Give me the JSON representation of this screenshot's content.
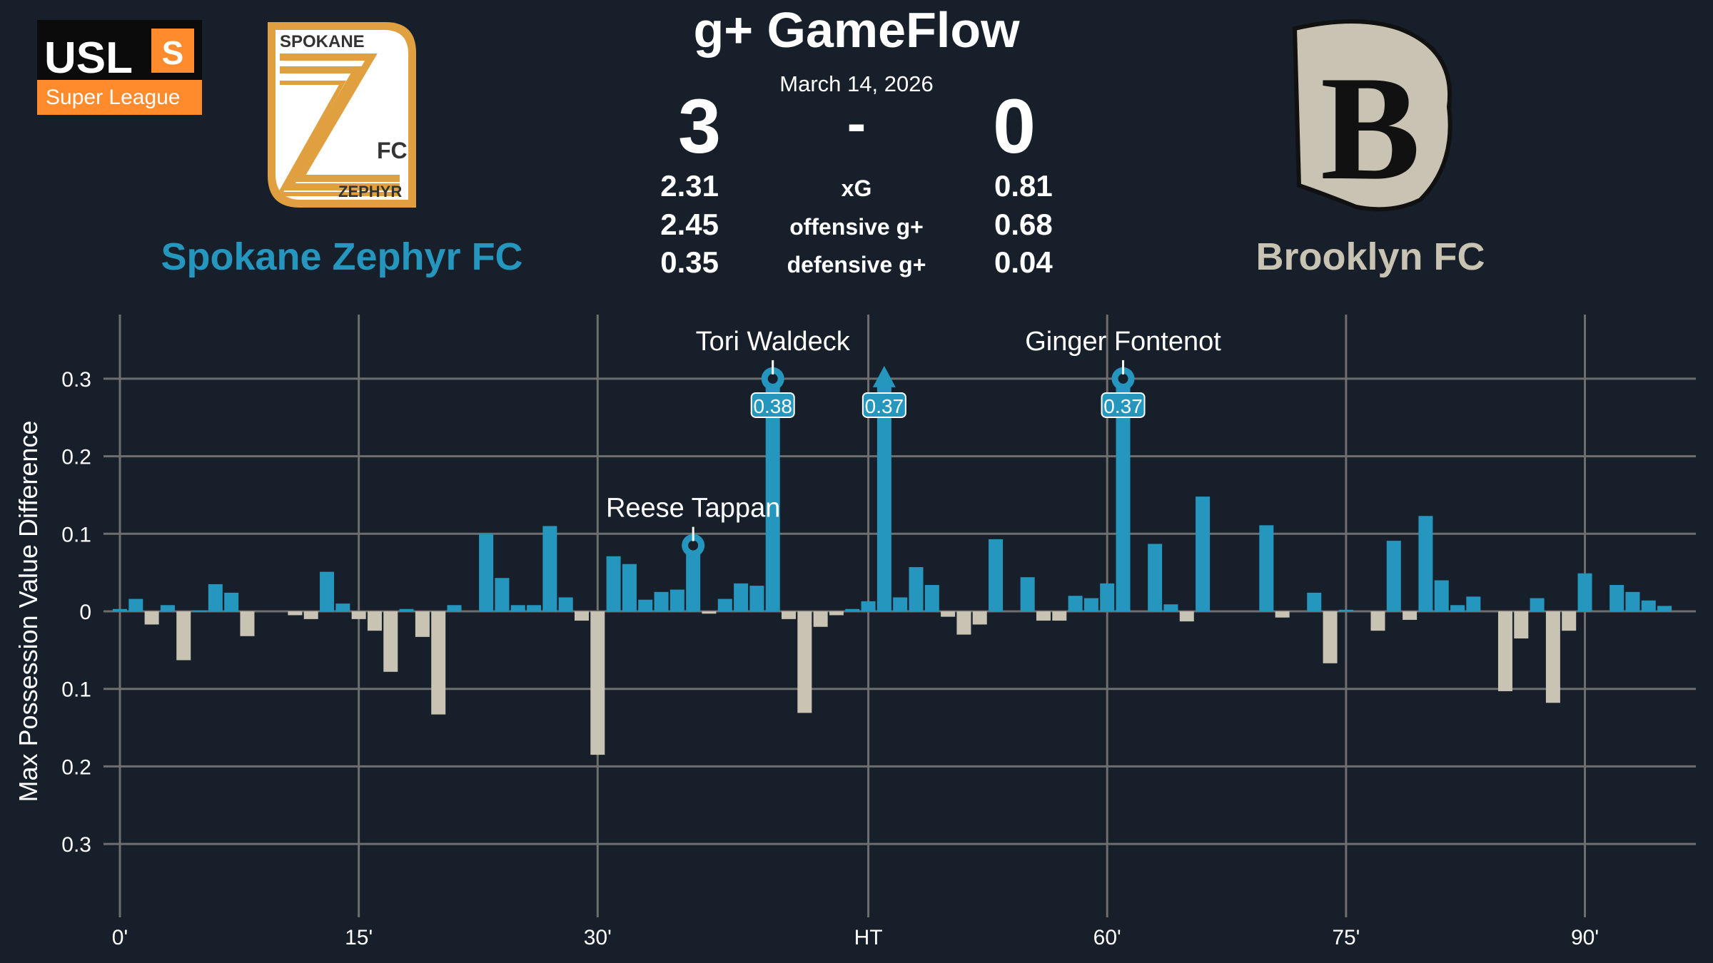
{
  "header": {
    "title": "g+ GameFlow",
    "date": "March 14, 2026",
    "score_separator": "-",
    "home": {
      "name": "Spokane Zephyr FC",
      "score": "3",
      "xg": "2.31",
      "offensive_gplus": "2.45",
      "defensive_gplus": "0.35",
      "color": "#2596be",
      "logo_text": [
        "SPOKANE",
        "FC",
        "ZEPHYR"
      ]
    },
    "away": {
      "name": "Brooklyn FC",
      "score": "0",
      "xg": "0.81",
      "offensive_gplus": "0.68",
      "defensive_gplus": "0.04",
      "color": "#c9c3b4",
      "logo_text": "B"
    },
    "stat_labels": [
      "xG",
      "offensive g+",
      "defensive g+"
    ],
    "league_logo": {
      "text": "USL",
      "badge": "S",
      "subtitle": "Super League",
      "color": "#ff8b2c"
    }
  },
  "chart_data": {
    "type": "bar",
    "ylabel": "Max Possession Value Difference",
    "xlabel": "",
    "ylim": [
      -0.39,
      0.38
    ],
    "yticks": [
      {
        "value": 0.3,
        "label": "0.3"
      },
      {
        "value": 0.2,
        "label": "0.2"
      },
      {
        "value": 0.1,
        "label": "0.1"
      },
      {
        "value": 0,
        "label": "0"
      },
      {
        "value": -0.1,
        "label": "0.1"
      },
      {
        "value": -0.2,
        "label": "0.2"
      },
      {
        "value": -0.3,
        "label": "0.3"
      }
    ],
    "xticks": [
      {
        "index": 0,
        "label": "0'"
      },
      {
        "index": 15,
        "label": "15'"
      },
      {
        "index": 30,
        "label": "30'"
      },
      {
        "index": 47,
        "label": "HT"
      },
      {
        "index": 62,
        "label": "60'"
      },
      {
        "index": 77,
        "label": "75'"
      },
      {
        "index": 92,
        "label": "90'"
      }
    ],
    "display_cap": 0.3,
    "series_note": "positive = Spokane Zephyr FC, negative = Brooklyn FC",
    "values": [
      0.003,
      0.016,
      -0.017,
      0.008,
      -0.063,
      0.001,
      0.035,
      0.024,
      -0.032,
      0,
      0,
      -0.005,
      -0.01,
      0.051,
      0.01,
      -0.01,
      -0.025,
      -0.078,
      0.003,
      -0.033,
      -0.133,
      0.008,
      0,
      0.1,
      0.043,
      0.008,
      0.008,
      0.11,
      0.018,
      -0.012,
      -0.185,
      0.071,
      0.061,
      0.015,
      0.025,
      0.028,
      0.085,
      -0.003,
      0.016,
      0.036,
      0.033,
      0.38,
      -0.01,
      -0.131,
      -0.02,
      -0.005,
      0.003,
      0.013,
      0.37,
      0.018,
      0.057,
      0.034,
      -0.007,
      -0.03,
      -0.017,
      0.093,
      0,
      0.044,
      -0.012,
      -0.012,
      0.02,
      0.017,
      0.036,
      0.37,
      0,
      0.087,
      0.009,
      -0.013,
      0.148,
      0,
      0,
      0,
      0.111,
      -0.008,
      0,
      0.024,
      -0.067,
      0.002,
      0,
      -0.025,
      0.091,
      -0.011,
      0.123,
      0.04,
      0.008,
      0.019,
      0,
      -0.103,
      -0.035,
      0.017,
      -0.118,
      -0.025,
      0.049,
      0,
      0.034,
      0.025,
      0.014,
      0.007
    ],
    "annotations": [
      {
        "index": 36,
        "player": "Reese Tappan",
        "goal": true
      },
      {
        "index": 41,
        "player": "Tori Waldeck",
        "goal": true,
        "label": "0.38"
      },
      {
        "index": 48,
        "goal": false,
        "label": "0.37"
      },
      {
        "index": 63,
        "player": "Ginger Fontenot",
        "goal": true,
        "label": "0.37"
      }
    ],
    "colors": {
      "positive": "#2596be",
      "negative": "#c9c3b4",
      "background": "#171f2a"
    }
  }
}
